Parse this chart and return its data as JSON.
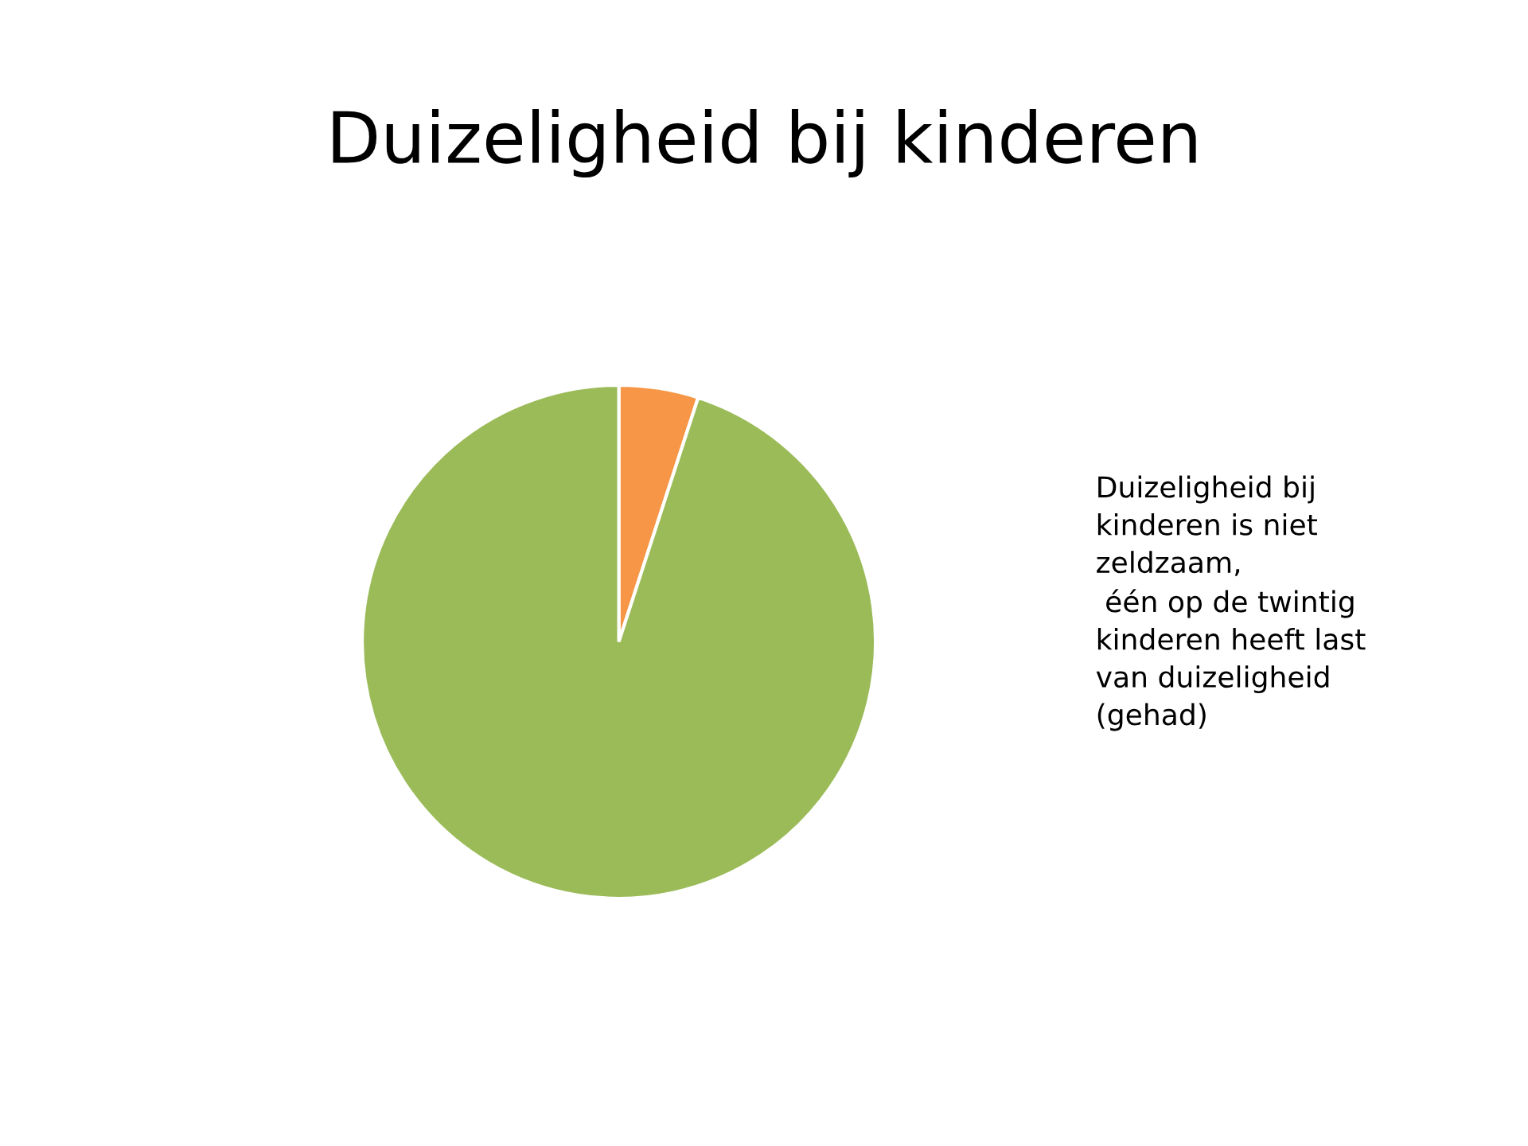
{
  "chart_data": {
    "type": "pie",
    "title": "Duizeligheid bij kinderen",
    "categories": [
      null,
      null
    ],
    "values": [
      5,
      95
    ],
    "colors": [
      "#f79646",
      "#9bbb59"
    ],
    "annotations": [
      "Duizeligheid bij\nkinderen is niet\nzeldzaam,\n één op de twintig\nkinderen heeft last\nvan duizeligheid\n(gehad)"
    ]
  }
}
